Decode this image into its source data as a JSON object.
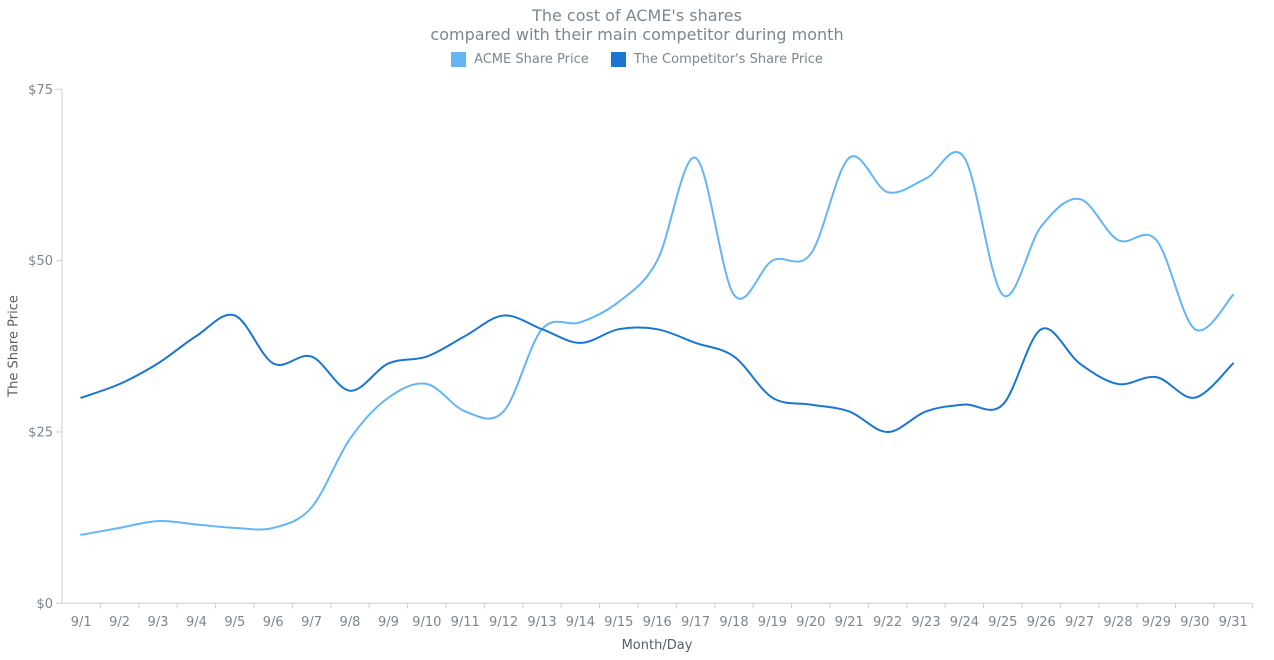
{
  "title": {
    "line1": "The cost of ACME's shares",
    "line2": "compared with their main competitor during month"
  },
  "legend": {
    "items": [
      {
        "label": "ACME Share Price",
        "color": "#64b5f6"
      },
      {
        "label": "The Competitor's Share Price",
        "color": "#1976d2"
      }
    ]
  },
  "axes": {
    "x_title": "Month/Day",
    "y_title": "The Share Price"
  },
  "colors": {
    "background": "#ffffff",
    "axis_line": "#cecece",
    "tick_label": "#7c868e",
    "axis_title": "#545f69",
    "title": "#7c868e"
  },
  "chart_data": {
    "type": "line",
    "smooth": true,
    "grid": false,
    "legend_position": "top",
    "title": "The cost of ACME's shares compared with their main competitor during month",
    "xlabel": "Month/Day",
    "ylabel": "The Share Price",
    "ylim": [
      0,
      75
    ],
    "y_ticks": [
      0,
      25,
      50,
      75
    ],
    "y_tick_labels": [
      "$0",
      "$25",
      "$50",
      "$75"
    ],
    "categories": [
      "9/1",
      "9/2",
      "9/3",
      "9/4",
      "9/5",
      "9/6",
      "9/7",
      "9/8",
      "9/9",
      "9/10",
      "9/11",
      "9/12",
      "9/13",
      "9/14",
      "9/15",
      "9/16",
      "9/17",
      "9/18",
      "9/19",
      "9/20",
      "9/21",
      "9/22",
      "9/23",
      "9/24",
      "9/25",
      "9/26",
      "9/27",
      "9/28",
      "9/29",
      "9/30",
      "9/31"
    ],
    "series": [
      {
        "name": "ACME Share Price",
        "color": "#64b5f6",
        "values": [
          10,
          11,
          12,
          11.5,
          11,
          11,
          14,
          24,
          30,
          32,
          28,
          28,
          40,
          41,
          44,
          50,
          65,
          45,
          50,
          51,
          65,
          60,
          62,
          65,
          45,
          55,
          59,
          53,
          53,
          40,
          45
        ]
      },
      {
        "name": "The Competitor's Share Price",
        "color": "#1976d2",
        "values": [
          30,
          32,
          35,
          39,
          42,
          35,
          36,
          31,
          35,
          36,
          39,
          42,
          40,
          38,
          40,
          40,
          38,
          36,
          30,
          29,
          28,
          25,
          28,
          29,
          29,
          40,
          35,
          32,
          33,
          30,
          35
        ]
      }
    ]
  }
}
